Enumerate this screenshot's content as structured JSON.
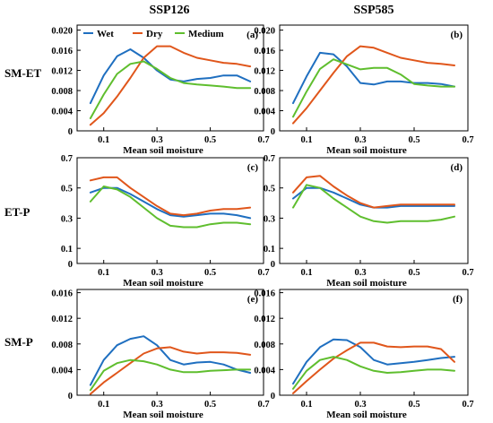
{
  "colors": {
    "Wet": "#1f6fc0",
    "Dry": "#e0561b",
    "Medium": "#5fbe2e"
  },
  "column_titles": [
    "SSP126",
    "SSP585"
  ],
  "row_labels": [
    "SM-ET",
    "ET-P",
    "SM-P"
  ],
  "chart_data": [
    {
      "type": "line",
      "panel_label": "(a)",
      "xlabel": "Mean soil moisture",
      "xlim": [
        0,
        0.7
      ],
      "xticks": [
        "0.1",
        "0.3",
        "0.5",
        "0.7"
      ],
      "ylim": [
        0,
        0.021
      ],
      "yticks": [
        "0",
        "0.004",
        "0.008",
        "0.012",
        "0.016",
        "0.020"
      ],
      "x": [
        0.05,
        0.1,
        0.15,
        0.2,
        0.25,
        0.3,
        0.35,
        0.4,
        0.45,
        0.5,
        0.55,
        0.6,
        0.65
      ],
      "legend": {
        "placement": "top-left",
        "entries": [
          "Wet",
          "Dry",
          "Medium"
        ]
      },
      "series": [
        {
          "name": "Wet",
          "values": [
            0.0055,
            0.011,
            0.0148,
            0.0162,
            0.0145,
            0.012,
            0.0102,
            0.0098,
            0.0103,
            0.0105,
            0.011,
            0.011,
            0.0098
          ]
        },
        {
          "name": "Dry",
          "values": [
            0.0012,
            0.0035,
            0.0068,
            0.0105,
            0.0145,
            0.0168,
            0.0168,
            0.0155,
            0.0145,
            0.014,
            0.0135,
            0.0133,
            0.0128
          ]
        },
        {
          "name": "Medium",
          "values": [
            0.0025,
            0.0072,
            0.0113,
            0.0133,
            0.0138,
            0.0123,
            0.0105,
            0.0095,
            0.0092,
            0.009,
            0.0088,
            0.0085,
            0.0085
          ]
        }
      ]
    },
    {
      "type": "line",
      "panel_label": "(b)",
      "xlabel": "Mean soil moisture",
      "xlim": [
        0,
        0.7
      ],
      "xticks": [
        "0.1",
        "0.3",
        "0.5",
        "0.7"
      ],
      "ylim": [
        0,
        0.021
      ],
      "yticks": [
        "0",
        "0.004",
        "0.008",
        "0.012",
        "0.016",
        "0.020"
      ],
      "x": [
        0.05,
        0.1,
        0.15,
        0.2,
        0.25,
        0.3,
        0.35,
        0.4,
        0.45,
        0.5,
        0.55,
        0.6,
        0.65
      ],
      "series": [
        {
          "name": "Wet",
          "values": [
            0.0055,
            0.0108,
            0.0155,
            0.0152,
            0.0128,
            0.0095,
            0.0092,
            0.0098,
            0.0098,
            0.0095,
            0.0095,
            0.0093,
            0.0088
          ]
        },
        {
          "name": "Dry",
          "values": [
            0.0015,
            0.0045,
            0.008,
            0.0115,
            0.0148,
            0.0168,
            0.0165,
            0.0155,
            0.0145,
            0.014,
            0.0135,
            0.0133,
            0.013
          ]
        },
        {
          "name": "Medium",
          "values": [
            0.0028,
            0.0078,
            0.0123,
            0.0142,
            0.0132,
            0.0122,
            0.0125,
            0.0125,
            0.0112,
            0.0093,
            0.009,
            0.0088,
            0.0088
          ]
        }
      ]
    },
    {
      "type": "line",
      "panel_label": "(c)",
      "xlabel": "Mean soil moisture",
      "xlim": [
        0,
        0.7
      ],
      "xticks": [
        "0.1",
        "0.3",
        "0.5",
        "0.7"
      ],
      "ylim": [
        0,
        0.7
      ],
      "yticks": [
        "0",
        "0.1",
        "0.3",
        "0.5",
        "0.7"
      ],
      "x": [
        0.05,
        0.1,
        0.15,
        0.2,
        0.25,
        0.3,
        0.35,
        0.4,
        0.45,
        0.5,
        0.55,
        0.6,
        0.65
      ],
      "series": [
        {
          "name": "Wet",
          "values": [
            0.47,
            0.5,
            0.5,
            0.46,
            0.41,
            0.36,
            0.32,
            0.31,
            0.32,
            0.33,
            0.33,
            0.32,
            0.3
          ]
        },
        {
          "name": "Dry",
          "values": [
            0.55,
            0.57,
            0.57,
            0.5,
            0.44,
            0.38,
            0.33,
            0.32,
            0.33,
            0.35,
            0.36,
            0.36,
            0.37
          ]
        },
        {
          "name": "Medium",
          "values": [
            0.41,
            0.51,
            0.49,
            0.44,
            0.37,
            0.3,
            0.25,
            0.24,
            0.24,
            0.26,
            0.27,
            0.27,
            0.26
          ]
        }
      ]
    },
    {
      "type": "line",
      "panel_label": "(d)",
      "xlabel": "Mean soil moisture",
      "xlim": [
        0,
        0.7
      ],
      "xticks": [
        "0.1",
        "0.3",
        "0.5",
        "0.7"
      ],
      "ylim": [
        0,
        0.7
      ],
      "yticks": [
        "0",
        "0.1",
        "0.3",
        "0.5",
        "0.7"
      ],
      "x": [
        0.05,
        0.1,
        0.15,
        0.2,
        0.25,
        0.3,
        0.35,
        0.4,
        0.45,
        0.5,
        0.55,
        0.6,
        0.65
      ],
      "series": [
        {
          "name": "Wet",
          "values": [
            0.43,
            0.5,
            0.5,
            0.47,
            0.43,
            0.39,
            0.37,
            0.37,
            0.38,
            0.38,
            0.38,
            0.38,
            0.38
          ]
        },
        {
          "name": "Dry",
          "values": [
            0.47,
            0.57,
            0.58,
            0.51,
            0.45,
            0.4,
            0.37,
            0.38,
            0.39,
            0.39,
            0.39,
            0.39,
            0.39
          ]
        },
        {
          "name": "Medium",
          "values": [
            0.37,
            0.52,
            0.5,
            0.43,
            0.37,
            0.31,
            0.28,
            0.27,
            0.28,
            0.28,
            0.28,
            0.29,
            0.31
          ]
        }
      ]
    },
    {
      "type": "line",
      "panel_label": "(e)",
      "xlabel": "Mean soil moisture",
      "xlim": [
        0,
        0.7
      ],
      "xticks": [
        "0.1",
        "0.3",
        "0.5",
        "0.7"
      ],
      "ylim": [
        0,
        0.0165
      ],
      "yticks": [
        "0",
        "0.004",
        "0.008",
        "0.012",
        "0.016"
      ],
      "x": [
        0.05,
        0.1,
        0.15,
        0.2,
        0.25,
        0.3,
        0.35,
        0.4,
        0.45,
        0.5,
        0.55,
        0.6,
        0.65
      ],
      "series": [
        {
          "name": "Wet",
          "values": [
            0.0016,
            0.0055,
            0.0078,
            0.0088,
            0.0092,
            0.0078,
            0.0055,
            0.0048,
            0.0051,
            0.0052,
            0.0048,
            0.004,
            0.0035
          ]
        },
        {
          "name": "Dry",
          "values": [
            0.0002,
            0.002,
            0.0035,
            0.005,
            0.0065,
            0.0073,
            0.0075,
            0.0068,
            0.0065,
            0.0067,
            0.0067,
            0.0066,
            0.0063
          ]
        },
        {
          "name": "Medium",
          "values": [
            0.0008,
            0.0038,
            0.005,
            0.0055,
            0.0053,
            0.0048,
            0.004,
            0.0036,
            0.0036,
            0.0038,
            0.0039,
            0.004,
            0.004
          ]
        }
      ]
    },
    {
      "type": "line",
      "panel_label": "(f)",
      "xlabel": "Mean soil moisture",
      "xlim": [
        0,
        0.7
      ],
      "xticks": [
        "0.1",
        "0.3",
        "0.5",
        "0.7"
      ],
      "ylim": [
        0,
        0.0165
      ],
      "yticks": [
        "0",
        "0.004",
        "0.008",
        "0.012",
        "0.016"
      ],
      "x": [
        0.05,
        0.1,
        0.15,
        0.2,
        0.25,
        0.3,
        0.35,
        0.4,
        0.45,
        0.5,
        0.55,
        0.6,
        0.65
      ],
      "series": [
        {
          "name": "Wet",
          "values": [
            0.0018,
            0.0052,
            0.0075,
            0.0087,
            0.0086,
            0.0075,
            0.0055,
            0.0048,
            0.005,
            0.0052,
            0.0055,
            0.0058,
            0.006
          ]
        },
        {
          "name": "Dry",
          "values": [
            0.0003,
            0.0022,
            0.004,
            0.0057,
            0.007,
            0.0082,
            0.0082,
            0.0076,
            0.0075,
            0.0076,
            0.0076,
            0.0072,
            0.0052
          ]
        },
        {
          "name": "Medium",
          "values": [
            0.001,
            0.0038,
            0.0055,
            0.006,
            0.0055,
            0.0045,
            0.0038,
            0.0035,
            0.0036,
            0.0038,
            0.004,
            0.004,
            0.0038
          ]
        }
      ]
    }
  ]
}
